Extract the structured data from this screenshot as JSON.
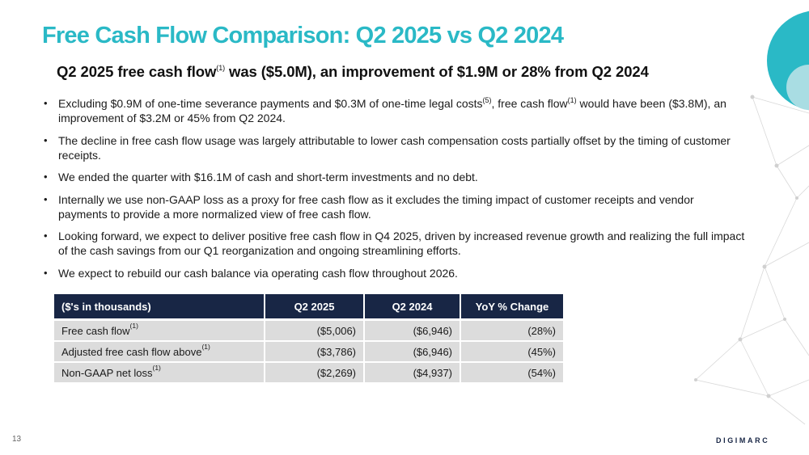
{
  "slide": {
    "title": "Free Cash Flow Comparison: Q2 2025 vs Q2 2024",
    "subtitle": {
      "part1": "Q2 2025 free cash flow",
      "sup": "(1)",
      "part2": " was ($5.0M), an improvement of $1.9M or 28% from Q2 2024"
    },
    "page_number": "13",
    "logo_text": "DIGIMARC"
  },
  "bullets": [
    {
      "a": "Excluding $0.9M of one-time severance payments and $0.3M of one-time legal costs",
      "sup1": "(5)",
      "b": ", free cash flow",
      "sup2": "(1)",
      "c": " would have been ($3.8M), an improvement of $3.2M or 45% from Q2 2024."
    },
    {
      "text": "The decline in free cash flow usage was largely attributable to lower cash compensation costs partially offset by the timing of customer receipts."
    },
    {
      "text": "We ended the quarter with $16.1M of cash and short-term investments and no debt."
    },
    {
      "text": "Internally we use non-GAAP loss as a proxy for free cash flow as it excludes the timing impact of customer receipts and vendor payments to provide a more normalized view of free cash flow."
    },
    {
      "text": "Looking forward, we expect to deliver positive free cash flow in Q4 2025, driven by increased revenue growth and realizing the full impact of the cash savings from our Q1 reorganization and ongoing streamlining efforts."
    },
    {
      "text": "We expect to rebuild our cash balance via operating cash flow throughout 2026."
    }
  ],
  "table": {
    "headers": [
      "($'s in thousands)",
      "Q2 2025",
      "Q2 2024",
      "YoY % Change"
    ],
    "rows": [
      {
        "label": "Free cash flow",
        "sup": "(1)",
        "q2_2025": "($5,006)",
        "q2_2024": "($6,946)",
        "change": "(28%)"
      },
      {
        "label": "Adjusted free cash flow above",
        "sup": "(1)",
        "q2_2025": "($3,786)",
        "q2_2024": "($6,946)",
        "change": "(45%)"
      },
      {
        "label": "Non-GAAP net loss",
        "sup": "(1)",
        "q2_2025": "($2,269)",
        "q2_2024": "($4,937)",
        "change": "(54%)"
      }
    ]
  },
  "colors": {
    "title": "#2ab9c6",
    "header_bg": "#182645",
    "row_bg": "#dcdcdc",
    "accent_circle": "#2ab9c6",
    "accent_circle_light": "#a9dde3"
  }
}
